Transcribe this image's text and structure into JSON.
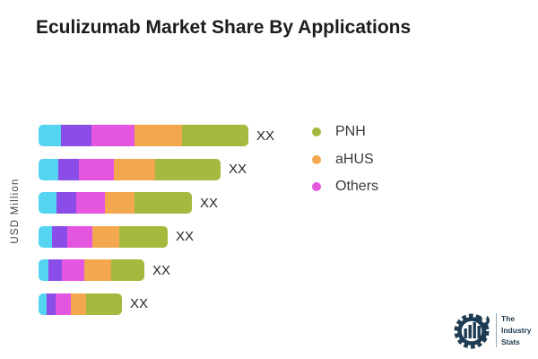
{
  "title": "Eculizumab Market Share By Applications",
  "axis": {
    "y_label": "USD Million"
  },
  "legend": {
    "items": [
      {
        "label": "PNH",
        "color": "#a4ba3e"
      },
      {
        "label": "aHUS",
        "color": "#f3a850"
      },
      {
        "label": "Others",
        "color": "#e455e0"
      }
    ]
  },
  "logo": {
    "lines": [
      "The",
      "Industry",
      "Stats"
    ],
    "color": "#1d3b53"
  },
  "chart_data": {
    "type": "bar",
    "orientation": "horizontal",
    "stacked": true,
    "title": "Eculizumab Market Share By Applications",
    "ylabel": "USD Million",
    "xlabel": "",
    "grid": false,
    "legend_position": "right",
    "value_label": "XX",
    "bar_labels": [
      "XX",
      "XX",
      "XX",
      "XX",
      "XX",
      "XX"
    ],
    "series": [
      {
        "name": "unlabeled-cyan",
        "color": "#55d4f2",
        "values": [
          25,
          22,
          20,
          15,
          11,
          9
        ]
      },
      {
        "name": "unlabeled-purple",
        "color": "#8a4de8",
        "values": [
          34,
          23,
          22,
          17,
          15,
          10
        ]
      },
      {
        "name": "Others",
        "color": "#e455e0",
        "values": [
          48,
          39,
          32,
          28,
          25,
          17
        ]
      },
      {
        "name": "aHUS",
        "color": "#f3a850",
        "values": [
          53,
          46,
          33,
          30,
          30,
          17
        ]
      },
      {
        "name": "PNH",
        "color": "#a4ba3e",
        "values": [
          74,
          73,
          64,
          54,
          37,
          40
        ]
      }
    ]
  }
}
